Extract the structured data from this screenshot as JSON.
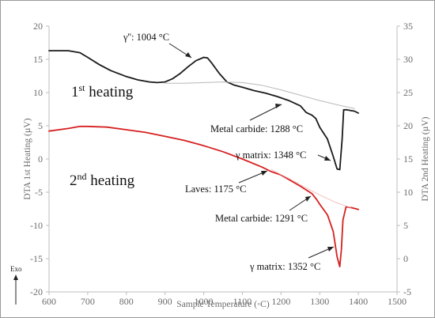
{
  "chart_data": {
    "type": "line",
    "xlabel": "Sample Temperature (◦C)",
    "ylabel_left": "DTA 1st Heating (µV)",
    "ylabel_right": "DTA 2nd Heating (µV)",
    "xlim": [
      600,
      1500
    ],
    "ylim_left": [
      -20,
      20
    ],
    "ylim_right": [
      -5,
      35
    ],
    "x_ticks": [
      "600",
      "700",
      "800",
      "900",
      "1000",
      "1100",
      "1200",
      "1300",
      "1400",
      "1500"
    ],
    "y_left_ticks": [
      "20",
      "15",
      "10",
      "5",
      "0",
      "-5",
      "-10",
      "-15",
      "-20"
    ],
    "y_right_ticks": [
      "35",
      "30",
      "25",
      "20",
      "15",
      "10",
      "5",
      "0",
      "-5"
    ],
    "grid": false,
    "legend": "none",
    "exo_label": "Exo",
    "series": [
      {
        "axis": "left",
        "color": "#1a1a1a",
        "x": [
          600,
          650,
          680,
          700,
          730,
          760,
          800,
          830,
          860,
          880,
          900,
          920,
          940,
          960,
          980,
          1000,
          1010,
          1020,
          1040,
          1060,
          1080,
          1100,
          1130,
          1160,
          1190,
          1220,
          1250,
          1265,
          1280,
          1290,
          1300,
          1320,
          1335,
          1345,
          1352,
          1358,
          1362,
          1370,
          1380,
          1390,
          1400
        ],
        "y": [
          16.3,
          16.3,
          16.0,
          15.3,
          14.2,
          13.3,
          12.4,
          11.9,
          11.6,
          11.5,
          11.6,
          12.1,
          12.9,
          13.9,
          14.8,
          15.3,
          15.2,
          14.5,
          12.9,
          11.6,
          11.1,
          10.8,
          10.3,
          9.9,
          9.4,
          8.8,
          8.0,
          7.0,
          6.6,
          6.1,
          4.8,
          3.0,
          0.4,
          -1.5,
          -1.6,
          3.0,
          7.4,
          7.4,
          7.3,
          7.2,
          6.9
        ]
      },
      {
        "axis": "left",
        "color": "#b8b8b8",
        "role": "baseline",
        "x": [
          900,
          950,
          1000,
          1050,
          1100,
          1150,
          1200,
          1250,
          1300,
          1350,
          1390
        ],
        "y": [
          11.4,
          11.4,
          11.5,
          11.6,
          11.5,
          11.1,
          10.4,
          9.6,
          8.8,
          8.1,
          7.6
        ]
      },
      {
        "axis": "right",
        "color": "#d62020",
        "x": [
          600,
          650,
          680,
          700,
          750,
          800,
          850,
          900,
          950,
          1000,
          1050,
          1100,
          1150,
          1175,
          1200,
          1250,
          1280,
          1291,
          1300,
          1320,
          1335,
          1345,
          1352,
          1356,
          1360,
          1368,
          1380,
          1400
        ],
        "y": [
          19.2,
          19.6,
          19.9,
          19.9,
          19.8,
          19.4,
          19.0,
          18.4,
          17.8,
          17.0,
          16.1,
          15.0,
          13.8,
          13.1,
          12.6,
          10.9,
          9.8,
          9.0,
          8.2,
          6.6,
          4.1,
          0.3,
          -1.2,
          1.3,
          5.8,
          7.8,
          7.7,
          7.4
        ]
      },
      {
        "axis": "right",
        "color": "#f0c0c0",
        "role": "baseline",
        "x": [
          1175,
          1220,
          1260,
          1300,
          1340,
          1380
        ],
        "y": [
          13.4,
          12.1,
          10.8,
          9.6,
          8.5,
          7.7
        ]
      }
    ],
    "annotations": [
      {
        "id": "gamma_prime",
        "text": "γ'': 1004 °C"
      },
      {
        "id": "carbide1",
        "text": "Metal carbide: 1288 °C"
      },
      {
        "id": "matrix1",
        "text": "γ matrix: 1348 °C"
      },
      {
        "id": "laves",
        "text": "Laves: 1175 °C"
      },
      {
        "id": "carbide2",
        "text": "Metal carbide: 1291 °C"
      },
      {
        "id": "matrix2",
        "text": "γ matrix: 1352 °C"
      }
    ],
    "heating_labels": [
      {
        "id": "first",
        "base": "1",
        "sup": "st",
        "rest": " heating"
      },
      {
        "id": "second",
        "base": "2",
        "sup": "nd",
        "rest": " heating"
      }
    ]
  }
}
